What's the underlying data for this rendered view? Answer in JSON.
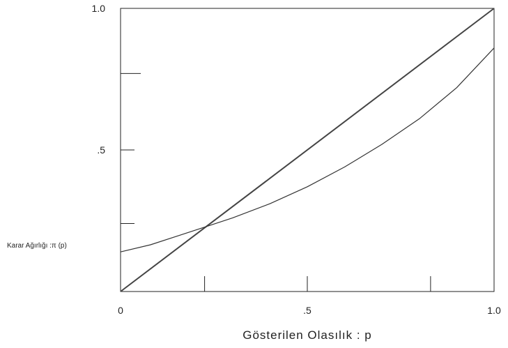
{
  "chart_data": {
    "type": "line",
    "xlabel": "Gösterilen Olasılık   : p",
    "ylabel": "Karar Ağırlığı :π (p)",
    "xlim": [
      0,
      1
    ],
    "ylim": [
      0,
      1
    ],
    "x_ticks": [
      {
        "value": 0,
        "label": "0"
      },
      {
        "value": 0.5,
        "label": ".5"
      },
      {
        "value": 1,
        "label": "1.0"
      }
    ],
    "x_minor_ticks": [
      0.225,
      0.5,
      0.83
    ],
    "y_ticks": [
      {
        "value": 0.5,
        "label": ".5"
      },
      {
        "value": 1,
        "label": "1.0"
      }
    ],
    "y_minor_ticks": [
      0.24,
      0.5,
      0.77
    ],
    "grid": false,
    "legend": "none",
    "series": [
      {
        "style": "identity-diagonal",
        "color": "#444444",
        "x": [
          0,
          1
        ],
        "y": [
          0,
          1
        ]
      },
      {
        "style": "decision-weight-curve",
        "color": "#333333",
        "x": [
          0,
          0.08,
          0.15,
          0.22,
          0.3,
          0.4,
          0.5,
          0.6,
          0.7,
          0.8,
          0.9,
          1.0
        ],
        "y": [
          0.14,
          0.165,
          0.195,
          0.225,
          0.26,
          0.31,
          0.37,
          0.44,
          0.52,
          0.61,
          0.72,
          0.86
        ]
      }
    ]
  }
}
